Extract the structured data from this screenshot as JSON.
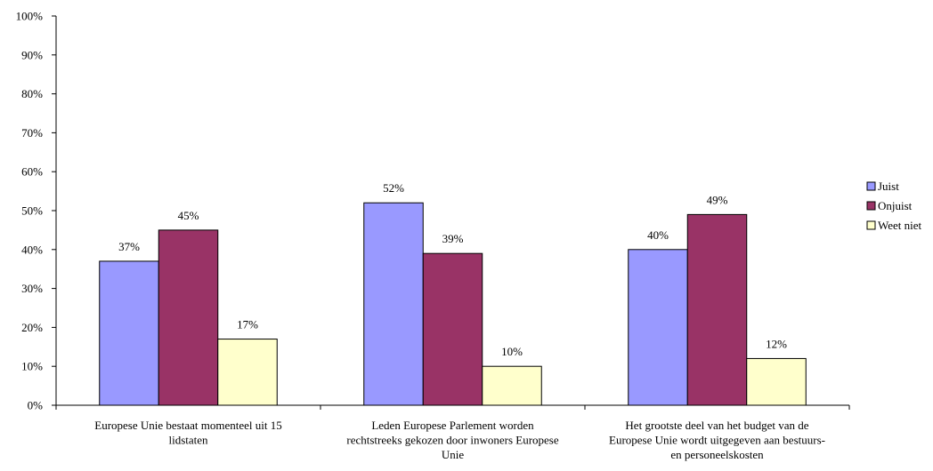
{
  "chart_data": {
    "type": "bar",
    "categories": [
      [
        "Europese Unie bestaat momenteel uit 15",
        "lidstaten"
      ],
      [
        "Leden Europese Parlement worden",
        "rechtstreeks gekozen door inwoners Europese",
        "Unie"
      ],
      [
        "Het grootste deel van het budget van de",
        "Europese Unie wordt uitgegeven aan bestuurs-",
        "en personeelskosten"
      ]
    ],
    "series": [
      {
        "name": "Juist",
        "values": [
          37,
          52,
          40
        ],
        "labels": [
          "37%",
          "52%",
          "40%"
        ],
        "color": "#9999ff"
      },
      {
        "name": "Onjuist",
        "values": [
          45,
          39,
          49
        ],
        "labels": [
          "45%",
          "39%",
          "49%"
        ],
        "color": "#993366"
      },
      {
        "name": "Weet niet",
        "values": [
          17,
          10,
          12
        ],
        "labels": [
          "17%",
          "10%",
          "12%"
        ],
        "color": "#ffffcc"
      }
    ],
    "ylim": [
      0,
      100
    ],
    "yticks": [
      "0%",
      "10%",
      "20%",
      "30%",
      "40%",
      "50%",
      "60%",
      "70%",
      "80%",
      "90%",
      "100%"
    ],
    "grid": false,
    "legend_position": "right"
  }
}
